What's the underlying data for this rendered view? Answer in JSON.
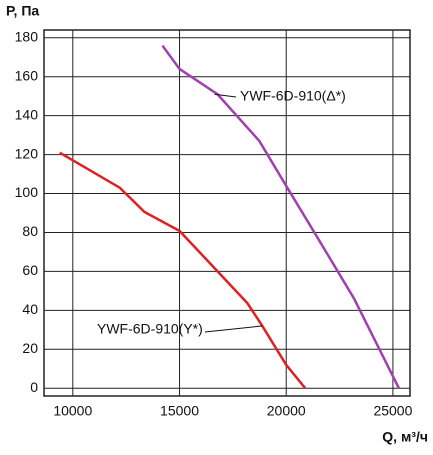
{
  "chart_data": {
    "type": "line",
    "y_label": "P, Па",
    "x_label": "Q, м³/ч",
    "xlim": [
      8650,
      25800
    ],
    "ylim": [
      -4,
      184
    ],
    "xticks": [
      10000,
      15000,
      20000,
      25000
    ],
    "yticks": [
      0,
      20,
      40,
      60,
      80,
      100,
      120,
      140,
      160,
      180
    ],
    "grid": true,
    "series": [
      {
        "name": "YWF-6D-910(Y*)",
        "color": "#e02020",
        "x": [
          9390,
          12200,
          13360,
          15000,
          16640,
          18180,
          18880,
          20000,
          20890
        ],
        "values": [
          121,
          103,
          90.5,
          80.8,
          61.7,
          43.7,
          32,
          12,
          0
        ]
      },
      {
        "name": "YWF-6D-910(Δ*)",
        "color": "#a040b0",
        "x": [
          14200,
          15000,
          16780,
          18740,
          20050,
          21540,
          23180,
          25280
        ],
        "values": [
          176,
          164,
          151,
          127,
          103,
          76,
          46,
          0
        ]
      }
    ]
  }
}
